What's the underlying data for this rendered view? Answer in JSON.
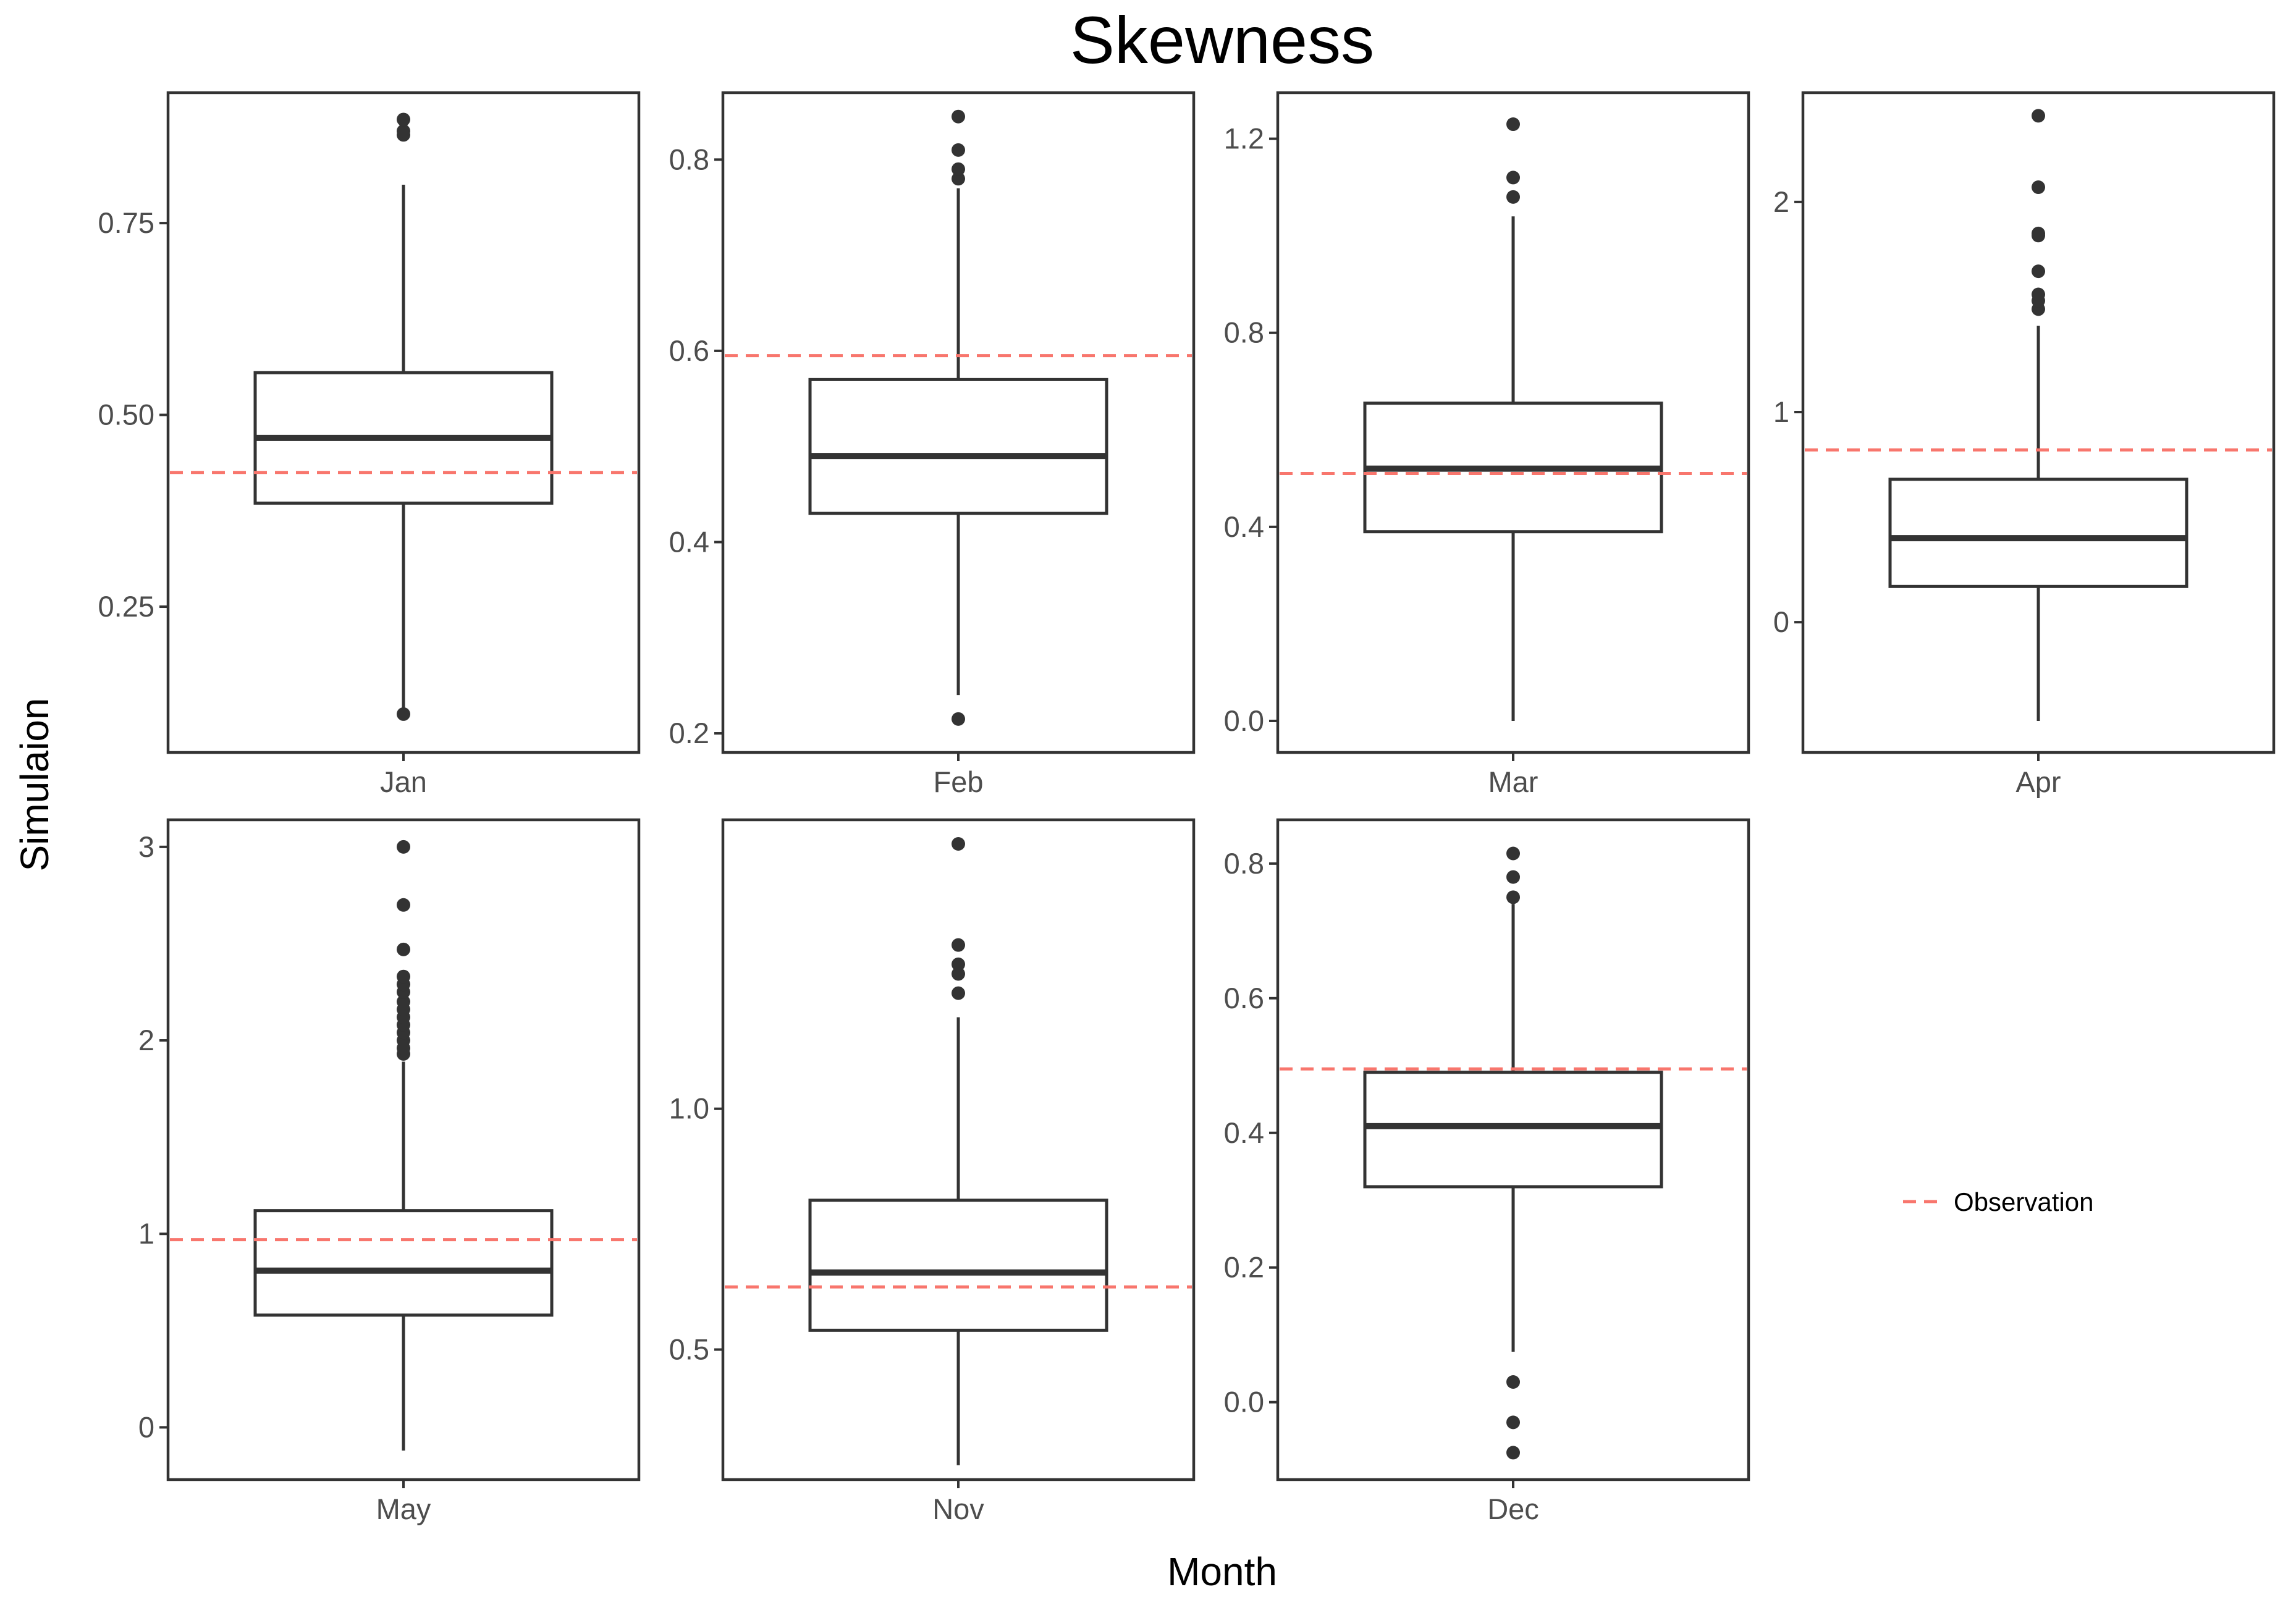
{
  "chart_data": {
    "type": "box",
    "title": "Skewness",
    "xlabel": "Month",
    "ylabel": "Simulaion",
    "grid": false,
    "legend": {
      "position": "right",
      "entries": [
        {
          "name": "Observation",
          "color": "#F8766D",
          "style": "dashed"
        }
      ]
    },
    "panels": [
      {
        "category": "Jan",
        "ylim": [
          0.06,
          0.92
        ],
        "yticks": [
          "0.25",
          "0.50",
          "0.75"
        ],
        "box": {
          "whisker_low": 0.11,
          "q1": 0.385,
          "median": 0.47,
          "q3": 0.555,
          "whisker_high": 0.8
        },
        "outliers": [
          0.11,
          0.865,
          0.87,
          0.885
        ],
        "observation": 0.425
      },
      {
        "category": "Feb",
        "ylim": [
          0.18,
          0.87
        ],
        "yticks": [
          "0.2",
          "0.4",
          "0.6",
          "0.8"
        ],
        "box": {
          "whisker_low": 0.24,
          "q1": 0.43,
          "median": 0.49,
          "q3": 0.57,
          "whisker_high": 0.77
        },
        "outliers": [
          0.215,
          0.78,
          0.79,
          0.81,
          0.845
        ],
        "observation": 0.595
      },
      {
        "category": "Mar",
        "ylim": [
          -0.065,
          1.295
        ],
        "yticks": [
          "0.0",
          "0.4",
          "0.8",
          "1.2"
        ],
        "box": {
          "whisker_low": 0.0,
          "q1": 0.39,
          "median": 0.52,
          "q3": 0.655,
          "whisker_high": 1.04
        },
        "outliers": [
          1.08,
          1.12,
          1.23
        ],
        "observation": 0.51
      },
      {
        "category": "Apr",
        "ylim": [
          -0.62,
          2.52
        ],
        "yticks": [
          "0",
          "1",
          "2"
        ],
        "box": {
          "whisker_low": -0.47,
          "q1": 0.17,
          "median": 0.4,
          "q3": 0.68,
          "whisker_high": 1.41
        },
        "outliers": [
          1.49,
          1.53,
          1.56,
          1.67,
          1.84,
          1.85,
          2.07,
          2.41
        ],
        "observation": 0.82
      },
      {
        "category": "May",
        "ylim": [
          -0.27,
          3.14
        ],
        "yticks": [
          "0",
          "1",
          "2",
          "3"
        ],
        "box": {
          "whisker_low": -0.12,
          "q1": 0.58,
          "median": 0.81,
          "q3": 1.12,
          "whisker_high": 1.89
        },
        "outliers": [
          1.93,
          1.96,
          2.0,
          2.04,
          2.08,
          2.12,
          2.16,
          2.2,
          2.25,
          2.29,
          2.33,
          2.47,
          2.7,
          3.0
        ],
        "observation": 0.97
      },
      {
        "category": "Nov",
        "ylim": [
          0.23,
          1.6
        ],
        "yticks": [
          "0.5",
          "1.0"
        ],
        "box": {
          "whisker_low": 0.26,
          "q1": 0.54,
          "median": 0.66,
          "q3": 0.81,
          "whisker_high": 1.19
        },
        "outliers": [
          1.24,
          1.28,
          1.3,
          1.34,
          1.55
        ],
        "observation": 0.63
      },
      {
        "category": "Dec",
        "ylim": [
          -0.115,
          0.865
        ],
        "yticks": [
          "0.0",
          "0.2",
          "0.4",
          "0.6",
          "0.8"
        ],
        "box": {
          "whisker_low": 0.075,
          "q1": 0.32,
          "median": 0.41,
          "q3": 0.49,
          "whisker_high": 0.74
        },
        "outliers": [
          -0.075,
          -0.03,
          0.03,
          0.75,
          0.78,
          0.815
        ],
        "observation": 0.495
      }
    ]
  }
}
